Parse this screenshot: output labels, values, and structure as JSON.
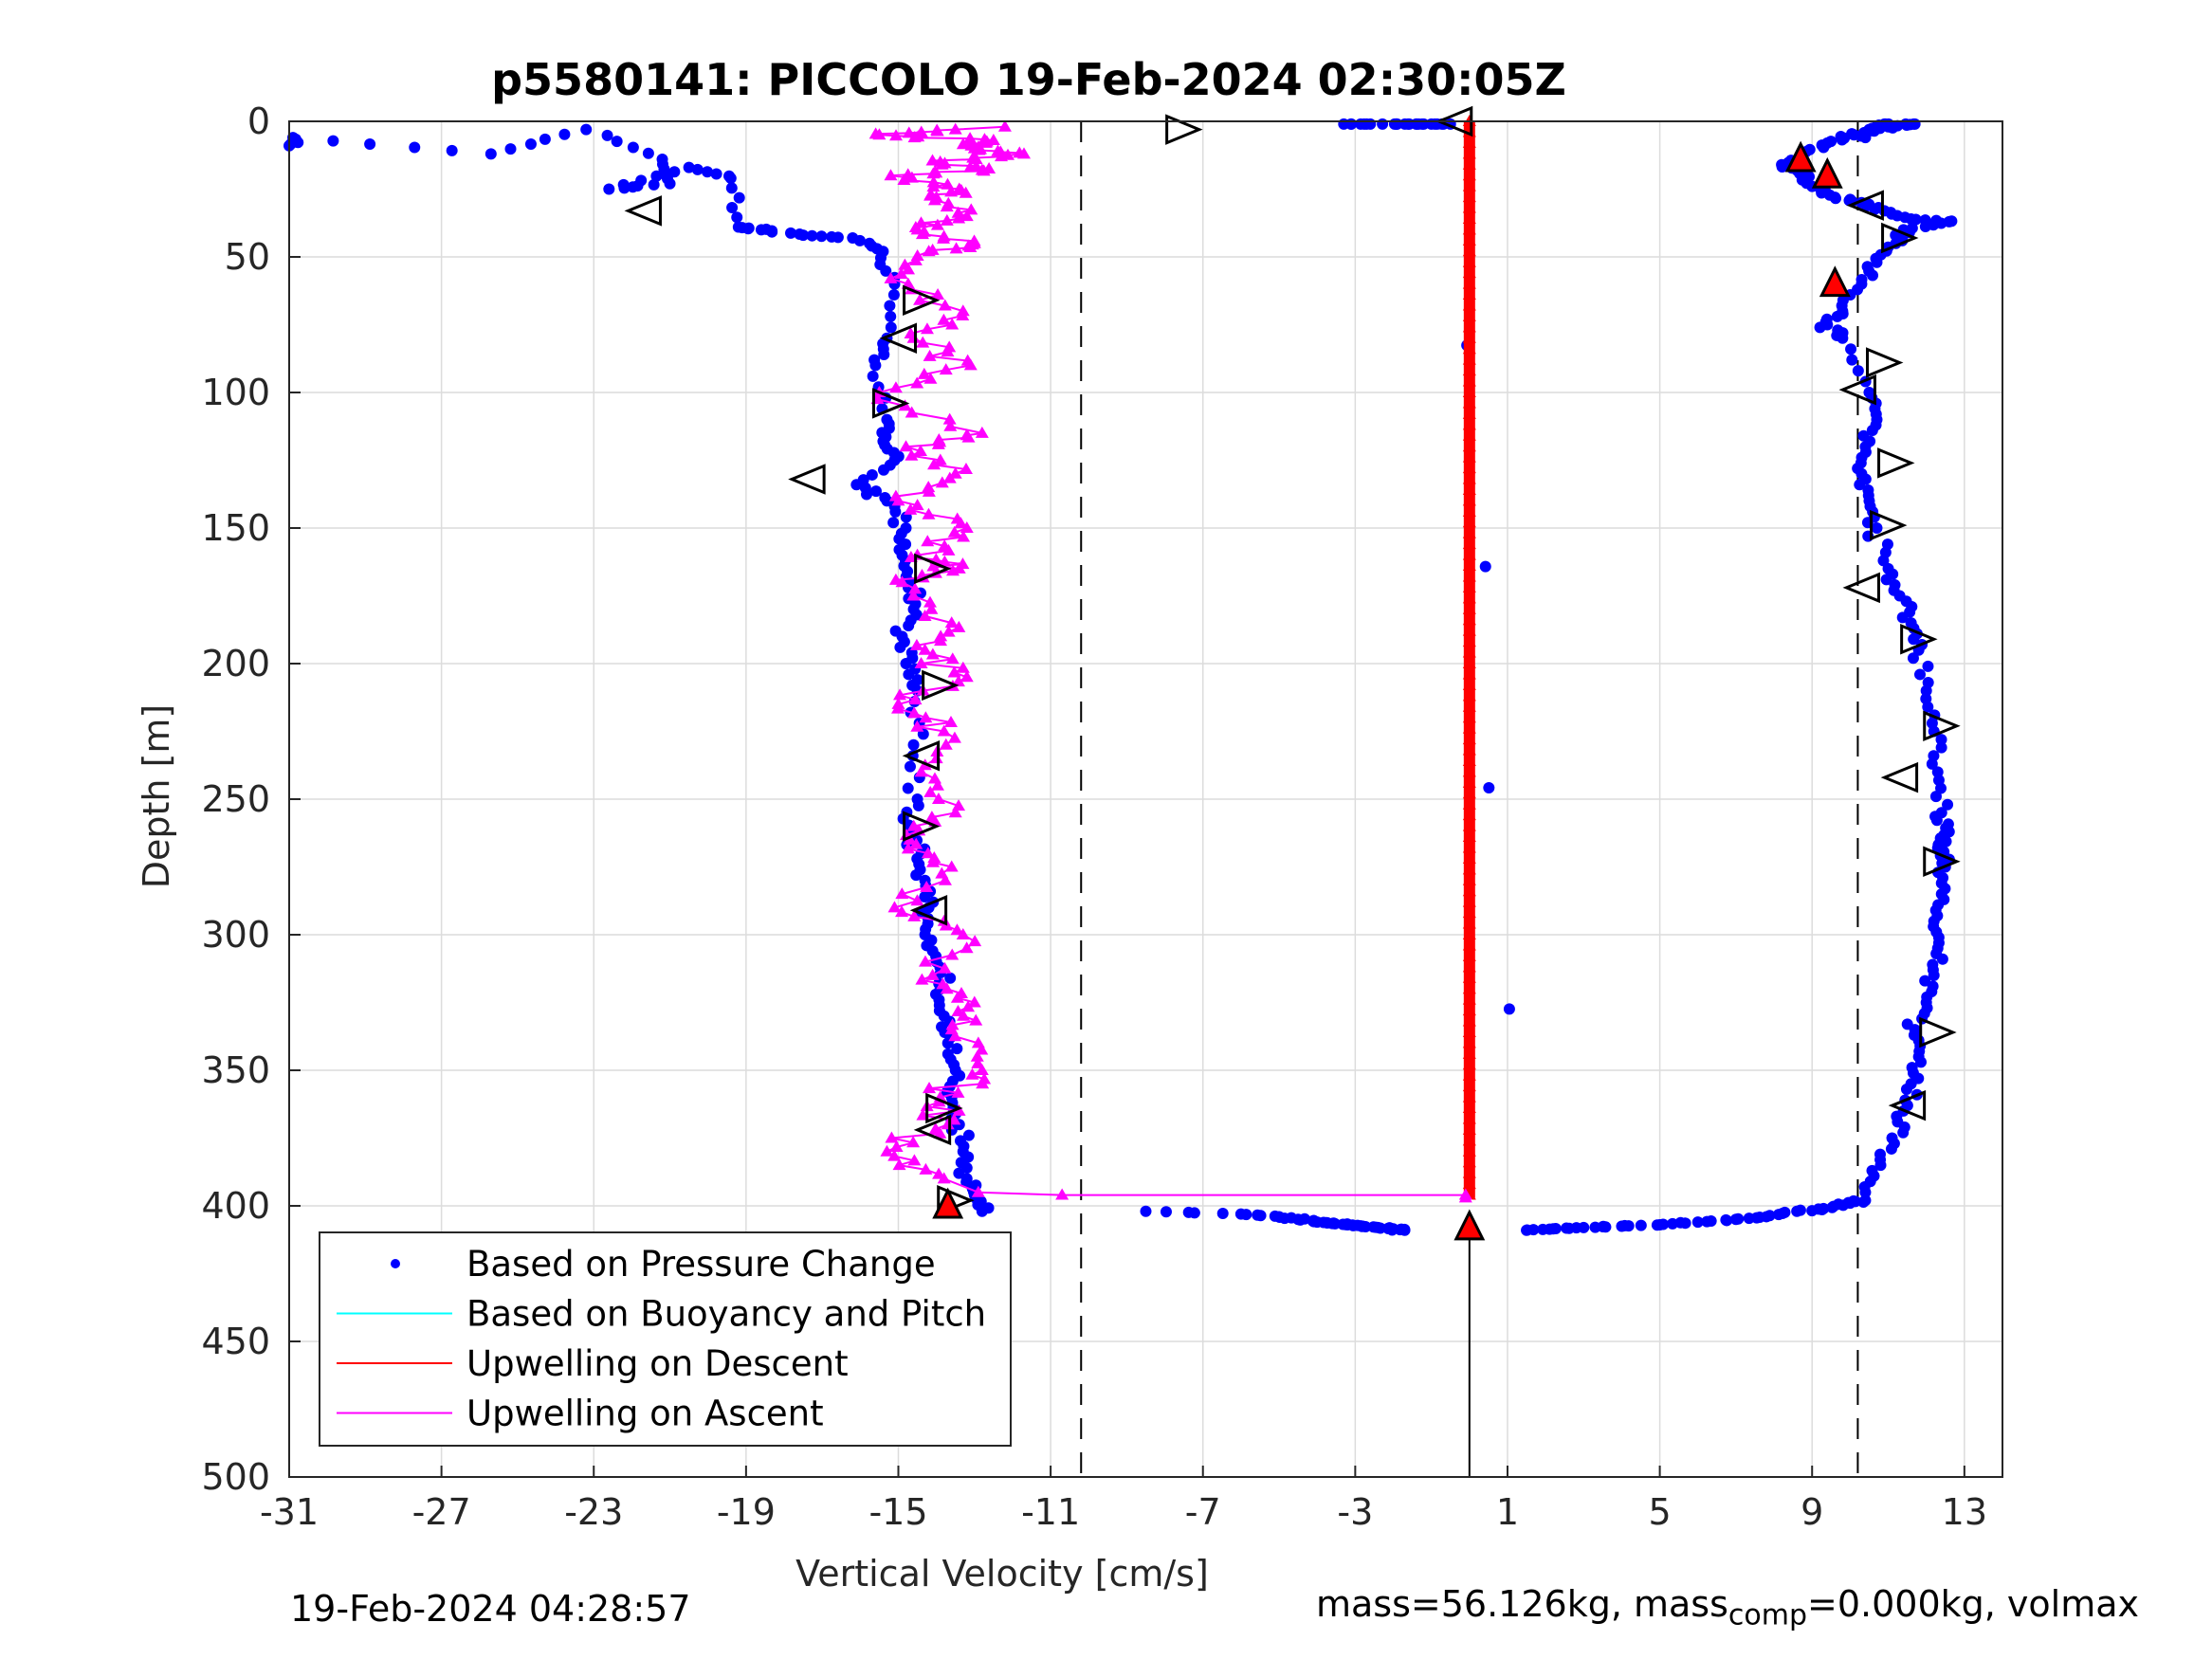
{
  "chart_data": {
    "type": "scatter",
    "title": "p5580141: PICCOLO 19-Feb-2024 02:30:05Z",
    "xlabel": "Vertical Velocity [cm/s]",
    "ylabel": "Depth [m]",
    "xlim": [
      -31,
      14
    ],
    "ylim": [
      500,
      0
    ],
    "y_reversed": true,
    "grid": true,
    "xticks": [
      -31,
      -27,
      -23,
      -19,
      -15,
      -11,
      -7,
      -3,
      1,
      5,
      9,
      13
    ],
    "yticks": [
      0,
      50,
      100,
      150,
      200,
      250,
      300,
      350,
      400,
      450,
      500
    ],
    "legend_position": "bottom-left",
    "legend": [
      {
        "label": "Based on Pressure Change",
        "style": "dots",
        "color": "#0000ff"
      },
      {
        "label": "Based on Buoyancy and Pitch",
        "style": "line",
        "color": "#00ffff"
      },
      {
        "label": "Upwelling on Descent",
        "style": "line",
        "color": "#ff0000"
      },
      {
        "label": "Upwelling on Ascent",
        "style": "line",
        "color": "#ff00ff"
      }
    ],
    "reference_lines": [
      {
        "x": -10.2,
        "style": "dashed",
        "color": "#000000"
      },
      {
        "x": 10.2,
        "style": "dashed",
        "color": "#000000"
      },
      {
        "x": 0,
        "style": "solid",
        "color": "#000000",
        "from_depth": 410,
        "to_depth": 500
      }
    ],
    "series": [
      {
        "name": "Based on Pressure Change",
        "color": "#0000ff",
        "segments": [
          {
            "x": [
              -31,
              -30.9,
              -25.7,
              -23.2,
              -21.2,
              -21,
              -22.6,
              -20.5,
              -19.4,
              -19.2,
              -18.6,
              -17.5,
              -16.2,
              -15.4,
              -15.1,
              -15.3,
              -15.6,
              -15.3,
              -15.4,
              -15.1,
              -16.1,
              -15.3,
              -14.8,
              -14.9,
              -14.7,
              -14.6,
              -14.9,
              -14.8,
              -14.5,
              -14.6,
              -14.5,
              -14.7,
              -14.4,
              -14.3,
              -14.2,
              -14.3,
              -14.0,
              -13.9,
              -13.8,
              -13.7,
              -13.5,
              -13.6,
              -13.4,
              -13.3,
              -13.2,
              -13.0,
              -12.8
            ],
            "y": [
              9,
              6,
              12,
              3,
              14,
              23,
              25,
              17,
              21,
              39,
              40,
              42,
              43,
              48,
              60,
              80,
              90,
              110,
              118,
              125,
              134,
              140,
              150,
              160,
              170,
              180,
              190,
              200,
              210,
              230,
              250,
              262,
              270,
              280,
              290,
              300,
              310,
              320,
              330,
              340,
              350,
              360,
              370,
              380,
              390,
              396,
              402
            ]
          },
          {
            "x": [
              -8.5,
              -6.0,
              -5.0,
              -4.5,
              -4.0,
              -3.6,
              -3.2,
              -2.8,
              -2.4,
              -2.0,
              -1.7
            ],
            "y": [
              402,
              403,
              404,
              405,
              406,
              406.5,
              407,
              407.5,
              408,
              408.5,
              409
            ]
          },
          {
            "x": [
              -3.3,
              -2.7,
              -1.9,
              -1.4,
              -1.0,
              -0.5,
              1.5,
              2.2,
              3.0,
              4.0,
              5.0,
              6.0,
              7.0,
              7.8,
              8.6,
              9.3,
              10.0,
              10.4
            ],
            "y": [
              1,
              1,
              1,
              1,
              1,
              1,
              409,
              408.5,
              408,
              407.5,
              407,
              406,
              405,
              404,
              402,
              401,
              399,
              398
            ]
          },
          {
            "x": [
              10.4,
              10.8,
              11.1,
              11.4,
              11.6,
              11.8,
              11.7,
              12.0,
              12.2,
              12.3,
              12.2,
              12.4,
              12.5,
              12.3,
              12.6,
              12.4,
              12.3,
              12.2,
              12.0,
              11.8,
              11.6,
              11.3,
              11.0,
              10.7,
              10.5,
              10.3,
              10.4,
              10.7,
              10.5,
              9.8,
              9.4,
              9.8,
              10.3,
              10.7,
              11.2,
              11.4,
              12.6,
              11.6,
              10.9,
              10.3,
              9.6,
              9.0,
              8.6,
              8.2,
              8.7,
              9.4,
              10.1,
              10.6,
              11.0,
              11.7,
              10.9,
              10.5,
              10.4
            ],
            "y": [
              395,
              385,
              375,
              365,
              355,
              345,
              335,
              325,
              315,
              305,
              295,
              285,
              275,
              268,
              262,
              255,
              240,
              225,
              210,
              195,
              185,
              175,
              165,
              150,
              140,
              130,
              120,
              110,
              100,
              80,
              75,
              70,
              60,
              52,
              45,
              40,
              37,
              36,
              33,
              30,
              28,
              24,
              18,
              16,
              12,
              8,
              5,
              3,
              2,
              1,
              1,
              3,
              6
            ]
          }
        ]
      },
      {
        "name": "Upwelling on Descent",
        "color": "#ff0000",
        "marker": "triangle",
        "x": [
          0,
          0,
          0,
          0,
          0,
          0,
          0,
          0,
          0,
          0,
          0
        ],
        "y": [
          0,
          40,
          80,
          120,
          160,
          200,
          240,
          280,
          320,
          360,
          397
        ]
      },
      {
        "name": "Upwelling on Ascent",
        "color": "#ff00ff",
        "marker": "triangle",
        "x": [
          -12.2,
          -13.5,
          -15.5,
          -12.5,
          -13.0,
          -11.7,
          -13.9,
          -12.8,
          -15.2,
          -13.4,
          -14.0,
          -13.2,
          -14.5,
          -13.0,
          -14.2,
          -15.2,
          -13.3,
          -14.6,
          -13.1,
          -15.5,
          -12.8,
          -14.8,
          -13.5,
          -15.0,
          -13.2,
          -14.5,
          -13.4,
          -14.9,
          -13.6,
          -14.3,
          -13.2,
          -15.0,
          -13.8,
          -14.4,
          -13.5,
          -14.7,
          -13.6,
          -15.1,
          -13.3,
          -14.1,
          -13.0,
          -13.6,
          -12.8,
          -13.9,
          -13.7,
          -15.3,
          -13.8,
          -12.9,
          -10.7,
          -0.1,
          -0.1
        ],
        "y": [
          2,
          3,
          5,
          7,
          10,
          12,
          15,
          18,
          20,
          25,
          28,
          35,
          40,
          45,
          48,
          58,
          70,
          80,
          90,
          100,
          115,
          120,
          130,
          140,
          150,
          160,
          165,
          170,
          185,
          195,
          205,
          215,
          225,
          240,
          255,
          265,
          275,
          290,
          300,
          315,
          325,
          335,
          350,
          360,
          370,
          380,
          390,
          395,
          396,
          396,
          397
        ]
      }
    ],
    "markers": {
      "open_triangles": [
        {
          "x": -21.6,
          "y": 33,
          "dir": "left"
        },
        {
          "x": -7.6,
          "y": 3,
          "dir": "right"
        },
        {
          "x": -0.3,
          "y": 0,
          "dir": "left"
        },
        {
          "x": -14.5,
          "y": 66,
          "dir": "right"
        },
        {
          "x": -14.9,
          "y": 80,
          "dir": "left"
        },
        {
          "x": -15.3,
          "y": 104,
          "dir": "right"
        },
        {
          "x": -17.3,
          "y": 132,
          "dir": "left"
        },
        {
          "x": -14.2,
          "y": 165,
          "dir": "right"
        },
        {
          "x": -14.0,
          "y": 208,
          "dir": "right"
        },
        {
          "x": -14.3,
          "y": 234,
          "dir": "left"
        },
        {
          "x": -14.5,
          "y": 260,
          "dir": "right"
        },
        {
          "x": -14.1,
          "y": 291,
          "dir": "left"
        },
        {
          "x": -13.9,
          "y": 364,
          "dir": "right"
        },
        {
          "x": -14.0,
          "y": 372,
          "dir": "left"
        },
        {
          "x": 10.5,
          "y": 31,
          "dir": "left"
        },
        {
          "x": 11.2,
          "y": 43,
          "dir": "right"
        },
        {
          "x": 10.8,
          "y": 89,
          "dir": "right"
        },
        {
          "x": 10.3,
          "y": 99,
          "dir": "left"
        },
        {
          "x": 11.1,
          "y": 126,
          "dir": "right"
        },
        {
          "x": 10.9,
          "y": 149,
          "dir": "right"
        },
        {
          "x": 10.4,
          "y": 172,
          "dir": "left"
        },
        {
          "x": 11.7,
          "y": 191,
          "dir": "right"
        },
        {
          "x": 12.3,
          "y": 223,
          "dir": "right"
        },
        {
          "x": 11.4,
          "y": 242,
          "dir": "left"
        },
        {
          "x": 12.3,
          "y": 273,
          "dir": "right"
        },
        {
          "x": 12.2,
          "y": 336,
          "dir": "right"
        },
        {
          "x": 11.6,
          "y": 363,
          "dir": "left"
        },
        {
          "x": -13.6,
          "y": 398,
          "dir": "right"
        }
      ],
      "filled_triangles": [
        {
          "x": 8.7,
          "y": 14
        },
        {
          "x": 9.4,
          "y": 20
        },
        {
          "x": 9.6,
          "y": 60
        },
        {
          "x": -13.7,
          "y": 400
        },
        {
          "x": 0,
          "y": 408
        }
      ]
    }
  },
  "footer": {
    "timestamp": "19-Feb-2024 04:28:57",
    "mass_text_a": "mass=56.126kg, mass",
    "mass_sub": "comp",
    "mass_text_b": "=0.000kg, volmax"
  }
}
